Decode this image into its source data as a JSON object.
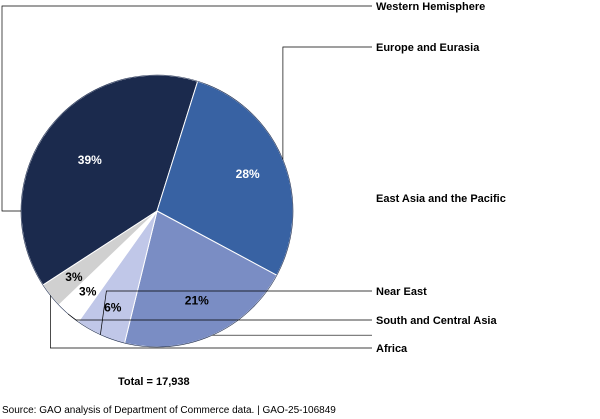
{
  "chart_data": {
    "type": "pie",
    "slices": [
      {
        "label": "Western Hemisphere",
        "value": 39,
        "value_label": "39%",
        "color": "#1b2a4d",
        "label_color": "#ffffff"
      },
      {
        "label": "Europe and Eurasia",
        "value": 28,
        "value_label": "28%",
        "color": "#3862a3",
        "label_color": "#ffffff"
      },
      {
        "label": "East Asia and the Pacific",
        "value": 21,
        "value_label": "21%",
        "color": "#7a8dc4",
        "label_color": "#000000"
      },
      {
        "label": "Near East",
        "value": 6,
        "value_label": "6%",
        "color": "#c0c7e8",
        "label_color": "#000000"
      },
      {
        "label": "South and Central Asia",
        "value": 3,
        "value_label": "3%",
        "color": "#ffffff",
        "label_color": "#000000"
      },
      {
        "label": "Africa",
        "value": 3,
        "value_label": "3%",
        "color": "#d0d0d0",
        "label_color": "#000000"
      }
    ],
    "legend_placement": "right, leader lines",
    "grid": false
  },
  "total": "Total = 17,938",
  "source": "Source: GAO analysis of Department of Commerce data.  |  GAO-25-106849"
}
